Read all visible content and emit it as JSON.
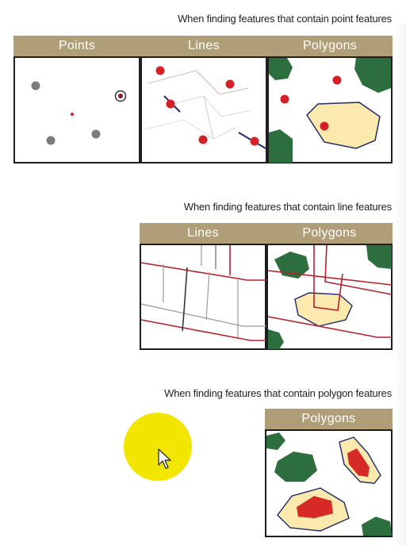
{
  "sections": [
    {
      "caption": "When finding features that contain point features",
      "headers": [
        "Points",
        "Lines",
        "Polygons"
      ]
    },
    {
      "caption": "When finding features that contain line features",
      "headers": [
        "Lines",
        "Polygons"
      ]
    },
    {
      "caption": "When finding features that contain polygon features",
      "headers": [
        "Polygons"
      ]
    }
  ],
  "colors": {
    "header": "#b09e78",
    "frame": "#1e1e1e",
    "point_gray": "#7a7d77",
    "point_red": "#d42026",
    "line_red": "#b8202e",
    "line_gray": "#9a9a9a",
    "poly_green": "#2d6e3e",
    "poly_fill": "#fbe9ad",
    "poly_outline": "#1c2a6a",
    "inner_red": "#d52a25",
    "cursor_highlight": "#f2e600"
  },
  "icons": [
    "mouse-pointer-icon"
  ]
}
